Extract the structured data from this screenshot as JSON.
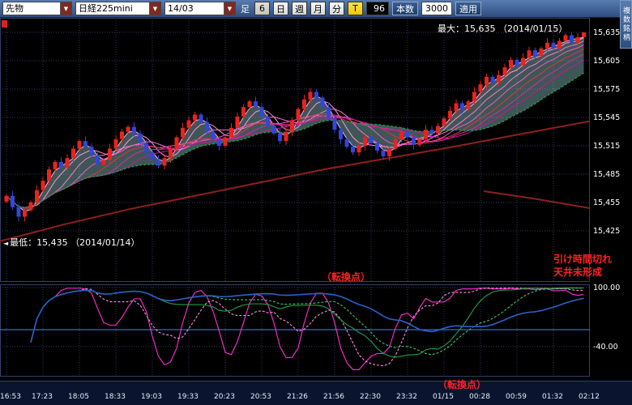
{
  "toolbar": {
    "instrument_type": "先物",
    "symbol": "日経225mini",
    "contract_month": "14/03",
    "timeframe_label": "足",
    "interval_value": "6",
    "period_buttons": {
      "day": "日",
      "week": "週",
      "month": "月",
      "minute": "分",
      "tick": "T"
    },
    "bars_value": "96",
    "bars_label": "本数",
    "range_value": "3000",
    "apply_label": "適用",
    "side_tab_label": "複数銘柄"
  },
  "annotations": {
    "max_label": "最大：15,635 （2014/01/15）",
    "min_marker": "◄",
    "min_label": "最低：15,435 （2014/01/14）",
    "turning_point_top": "（転換点）",
    "turning_point_bottom": "（転換点）",
    "close_notice_line1": "引け時間切れ",
    "close_notice_line2": "天井未形成"
  },
  "price_axis": {
    "labels": [
      {
        "p": 15635,
        "t": "15,635"
      },
      {
        "p": 15605,
        "t": "15,605"
      },
      {
        "p": 15575,
        "t": "15,575"
      },
      {
        "p": 15545,
        "t": "15,545"
      },
      {
        "p": 15515,
        "t": "15,515"
      },
      {
        "p": 15485,
        "t": "15,485"
      },
      {
        "p": 15455,
        "t": "15,455"
      },
      {
        "p": 15425,
        "t": "15,425"
      }
    ]
  },
  "chart_data": {
    "type": "candlestick",
    "title": "日経225mini 14/03 6分足 96本",
    "bars": 96,
    "x_time_labels": [
      "16:53",
      "17:23",
      "18:05",
      "18:33",
      "19:03",
      "19:33",
      "20:23",
      "20:53",
      "21:26",
      "21:56",
      "22:30",
      "23:32",
      "01/15",
      "00:28",
      "00:59",
      "01:32",
      "02:12"
    ],
    "closes": [
      15462,
      15450,
      15440,
      15447,
      15455,
      15468,
      15478,
      15490,
      15498,
      15492,
      15502,
      15512,
      15520,
      15514,
      15505,
      15495,
      15500,
      15512,
      15522,
      15530,
      15535,
      15528,
      15518,
      15508,
      15500,
      15494,
      15502,
      15512,
      15524,
      15534,
      15542,
      15548,
      15540,
      15530,
      15522,
      15515,
      15524,
      15534,
      15546,
      15556,
      15562,
      15556,
      15546,
      15536,
      15528,
      15520,
      15530,
      15542,
      15554,
      15564,
      15572,
      15566,
      15556,
      15544,
      15532,
      15522,
      15514,
      15508,
      15515,
      15524,
      15518,
      15510,
      15504,
      15512,
      15522,
      15530,
      15524,
      15516,
      15522,
      15532,
      15528,
      15536,
      15544,
      15552,
      15560,
      15554,
      15562,
      15572,
      15580,
      15588,
      15582,
      15590,
      15598,
      15606,
      15600,
      15608,
      15616,
      15610,
      15618,
      15624,
      15618,
      15626,
      15632,
      15624,
      15630,
      15635
    ],
    "price_min": {
      "value": 15435,
      "index": 2,
      "date": "2014/01/14"
    },
    "price_max": {
      "value": 15635,
      "index": 95,
      "date": "2014/01/15"
    },
    "y_axis": {
      "min": 15425,
      "max": 15635,
      "step": 30
    },
    "overlays": {
      "ma_ribbon_periods": [
        3,
        5,
        8,
        11,
        14,
        17,
        20
      ],
      "green_ma_period": 26,
      "long_ma_points": [
        [
          0,
          15414
        ],
        [
          80,
          15432
        ],
        [
          160,
          15448
        ],
        [
          240,
          15462
        ],
        [
          320,
          15476
        ],
        [
          400,
          15490
        ],
        [
          480,
          15502
        ],
        [
          560,
          15514
        ],
        [
          640,
          15527
        ],
        [
          728,
          15541
        ]
      ],
      "long_ma2_points": [
        [
          597,
          15467
        ],
        [
          660,
          15459
        ],
        [
          728,
          15449
        ]
      ]
    },
    "oscillator": {
      "type": "RCI",
      "periods": [
        9,
        13,
        26,
        34,
        52
      ],
      "y_labels": [
        {
          "v": 100,
          "t": "100.00"
        },
        {
          "v": -40,
          "t": "-40.00"
        }
      ],
      "zero_line": 0,
      "range": [
        -100,
        100
      ]
    }
  },
  "colors": {
    "up": "#e8241e",
    "down": "#3246d8",
    "grid": "#2a3c64",
    "ribbon": [
      "#ffb0e6",
      "#ff94da",
      "#fa78ce",
      "#f05cc2",
      "#e03440",
      "#da28a6",
      "#cc1496"
    ],
    "green_ma": "#12a348",
    "long_ma": "#8e1f1f",
    "cloud": "rgba(158,214,214,0.40)",
    "osc": [
      "#ff30d0",
      "#ff8ce0",
      "#1fa048",
      "#3fc468",
      "#2a62c8"
    ],
    "zero": "#3a6ad0",
    "frame": "#334066",
    "note_red": "#ff2222"
  }
}
